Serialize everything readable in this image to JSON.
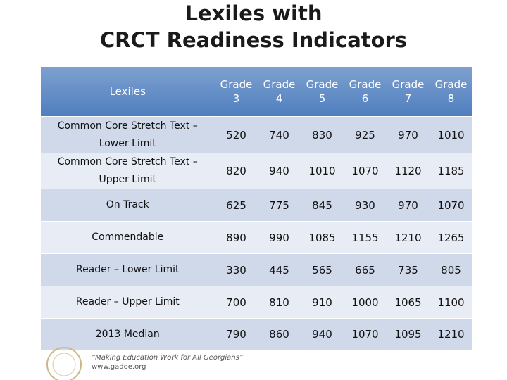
{
  "title": [
    "Lexiles with",
    "CRCT Readiness Indicators"
  ],
  "table": {
    "header": [
      "Lexiles",
      "Grade 3",
      "Grade 4",
      "Grade 5",
      "Grade 6",
      "Grade 7",
      "Grade 8"
    ],
    "rows": [
      [
        "Common Core Stretch Text – Lower Limit",
        "520",
        "740",
        "830",
        "925",
        "970",
        "1010"
      ],
      [
        "Common Core Stretch Text – Upper Limit",
        "820",
        "940",
        "1010",
        "1070",
        "1120",
        "1185"
      ],
      [
        "On Track",
        "625",
        "775",
        "845",
        "930",
        "970",
        "1070"
      ],
      [
        "Commendable",
        "890",
        "990",
        "1085",
        "1155",
        "1210",
        "1265"
      ],
      [
        "Reader – Lower Limit",
        "330",
        "445",
        "565",
        "665",
        "735",
        "805"
      ],
      [
        "Reader – Upper Limit",
        "700",
        "810",
        "910",
        "1000",
        "1065",
        "1100"
      ],
      [
        "2013 Median",
        "790",
        "860",
        "940",
        "1070",
        "1095",
        "1210"
      ]
    ]
  },
  "footer": {
    "slogan": "“Making Education Work for All Georgians”",
    "url": "www.gadoe.org"
  }
}
